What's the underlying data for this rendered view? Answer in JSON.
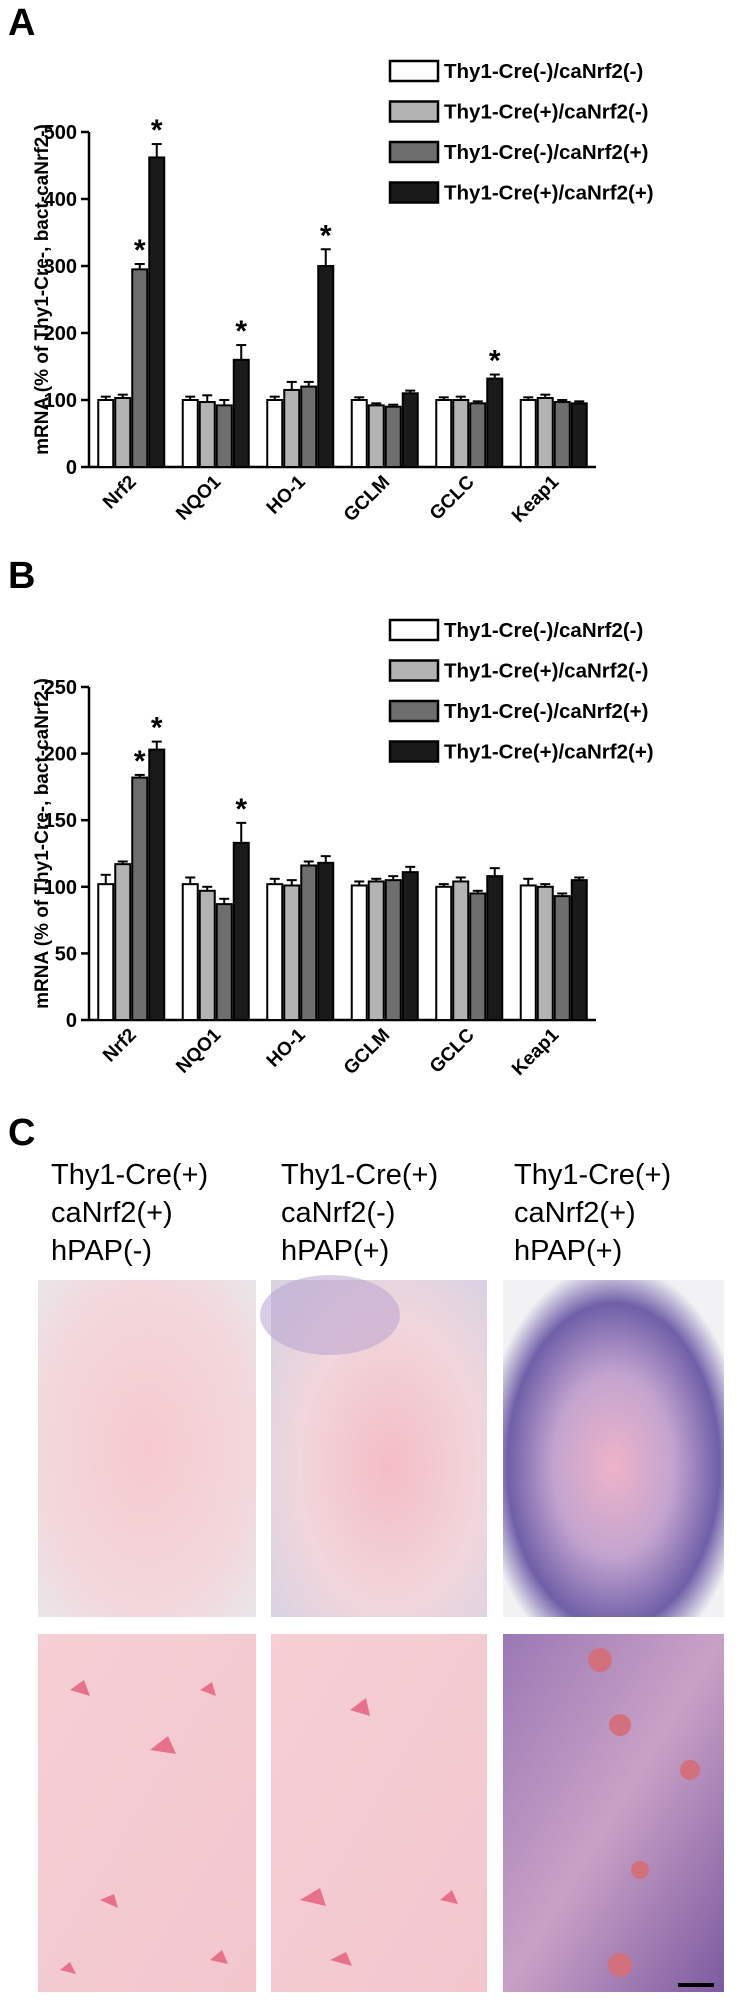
{
  "chart_data": [
    {
      "type": "bar",
      "panel": "A",
      "ylabel": "mRNA (% of Thy1-Cre-, bact-caNrf2-)",
      "categories": [
        "Nrf2",
        "NQO1",
        "HO-1",
        "GCLM",
        "GCLC",
        "Keap1"
      ],
      "ylim": [
        0,
        500
      ],
      "yticks": [
        0,
        100,
        200,
        300,
        400,
        500
      ],
      "legend": "top-right",
      "series": [
        {
          "name": "Thy1-Cre(-)/caNrf2(-)",
          "color": "#ffffff",
          "values": [
            100,
            100,
            100,
            100,
            100,
            100
          ],
          "errors": [
            5,
            5,
            5,
            4,
            4,
            4
          ],
          "significance": [
            null,
            null,
            null,
            null,
            null,
            null
          ]
        },
        {
          "name": "Thy1-Cre(+)/caNrf2(-)",
          "color": "#b3b3b3",
          "values": [
            103,
            97,
            115,
            92,
            100,
            103
          ],
          "errors": [
            5,
            10,
            12,
            3,
            5,
            5
          ],
          "significance": [
            null,
            null,
            null,
            null,
            null,
            null
          ]
        },
        {
          "name": "Thy1-Cre(-)/caNrf2(+)",
          "color": "#6e6e6e",
          "values": [
            295,
            92,
            120,
            90,
            95,
            97
          ],
          "errors": [
            8,
            8,
            7,
            3,
            3,
            3
          ],
          "significance": [
            "*",
            null,
            null,
            null,
            null,
            null
          ]
        },
        {
          "name": "Thy1-Cre(+)/caNrf2(+)",
          "color": "#1a1a1a",
          "values": [
            462,
            160,
            300,
            110,
            132,
            95
          ],
          "errors": [
            20,
            22,
            25,
            4,
            6,
            3
          ],
          "significance": [
            "*",
            "*",
            "*",
            null,
            "*",
            null
          ]
        }
      ]
    },
    {
      "type": "bar",
      "panel": "B",
      "ylabel": "mRNA (% of Thy1-Cre-, bact-caNrf2-)",
      "categories": [
        "Nrf2",
        "NQO1",
        "HO-1",
        "GCLM",
        "GCLC",
        "Keap1"
      ],
      "ylim": [
        0,
        250
      ],
      "yticks": [
        0,
        50,
        100,
        150,
        200,
        250
      ],
      "legend": "top-right",
      "series": [
        {
          "name": "Thy1-Cre(-)/caNrf2(-)",
          "color": "#ffffff",
          "values": [
            102,
            102,
            102,
            101,
            100,
            101
          ],
          "errors": [
            7,
            5,
            4,
            3,
            2,
            5
          ],
          "significance": [
            null,
            null,
            null,
            null,
            null,
            null
          ]
        },
        {
          "name": "Thy1-Cre(+)/caNrf2(-)",
          "color": "#b3b3b3",
          "values": [
            117,
            97,
            101,
            104,
            104,
            100
          ],
          "errors": [
            2,
            3,
            4,
            2,
            3,
            2
          ],
          "significance": [
            null,
            null,
            null,
            null,
            null,
            null
          ]
        },
        {
          "name": "Thy1-Cre(-)/caNrf2(+)",
          "color": "#6e6e6e",
          "values": [
            182,
            87,
            116,
            105,
            95,
            93
          ],
          "errors": [
            2,
            4,
            3,
            3,
            2,
            2
          ],
          "significance": [
            "*",
            null,
            null,
            null,
            null,
            null
          ]
        },
        {
          "name": "Thy1-Cre(+)/caNrf2(+)",
          "color": "#1a1a1a",
          "values": [
            203,
            133,
            118,
            111,
            108,
            105
          ],
          "errors": [
            6,
            15,
            5,
            4,
            6,
            2
          ],
          "significance": [
            "*",
            "*",
            null,
            null,
            null,
            null
          ]
        }
      ]
    }
  ],
  "panel_c": {
    "panel": "C",
    "columns": [
      [
        "Thy1-Cre(+)",
        "caNrf2(+)",
        "hPAP(-)"
      ],
      [
        "Thy1-Cre(+)",
        "caNrf2(-)",
        "hPAP(+)"
      ],
      [
        "Thy1-Cre(+)",
        "caNrf2(+)",
        "hPAP(+)"
      ]
    ]
  }
}
